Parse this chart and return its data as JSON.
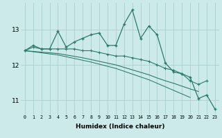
{
  "xlabel": "Humidex (Indice chaleur)",
  "background_color": "#cceaea",
  "grid_color": "#aacece",
  "line_color": "#2a7a6a",
  "x_values": [
    0,
    1,
    2,
    3,
    4,
    5,
    6,
    7,
    8,
    9,
    10,
    11,
    12,
    13,
    14,
    15,
    16,
    17,
    18,
    19,
    20,
    21,
    22,
    23
  ],
  "line1": [
    12.4,
    12.55,
    12.45,
    12.45,
    12.95,
    12.5,
    12.65,
    12.75,
    12.85,
    12.9,
    12.55,
    12.55,
    13.15,
    13.55,
    12.75,
    13.1,
    12.85,
    12.05,
    11.8,
    11.75,
    11.65,
    11.05,
    11.15,
    10.75
  ],
  "line2": [
    12.4,
    12.5,
    12.45,
    12.45,
    12.45,
    12.45,
    12.45,
    12.4,
    12.4,
    12.35,
    12.3,
    12.25,
    12.25,
    12.2,
    12.15,
    12.1,
    12.0,
    11.9,
    11.85,
    11.75,
    11.55,
    11.45,
    11.55,
    null
  ],
  "line3": [
    12.4,
    12.38,
    12.36,
    12.34,
    12.32,
    12.28,
    12.24,
    12.2,
    12.15,
    12.1,
    12.05,
    12.0,
    11.93,
    11.86,
    11.79,
    11.72,
    11.63,
    11.55,
    11.48,
    11.4,
    11.32,
    11.25,
    null,
    null
  ],
  "line4": [
    12.4,
    12.37,
    12.34,
    12.31,
    12.28,
    12.23,
    12.18,
    12.13,
    12.08,
    12.02,
    11.96,
    11.9,
    11.82,
    11.74,
    11.66,
    11.58,
    11.48,
    11.38,
    11.28,
    11.18,
    11.08,
    null,
    null,
    null
  ],
  "ylim": [
    10.6,
    13.75
  ],
  "xlim": [
    -0.5,
    23.5
  ],
  "yticks": [
    11,
    12,
    13
  ],
  "xticks": [
    0,
    1,
    2,
    3,
    4,
    5,
    6,
    7,
    8,
    9,
    10,
    11,
    12,
    13,
    14,
    15,
    16,
    17,
    18,
    19,
    20,
    21,
    22,
    23
  ]
}
